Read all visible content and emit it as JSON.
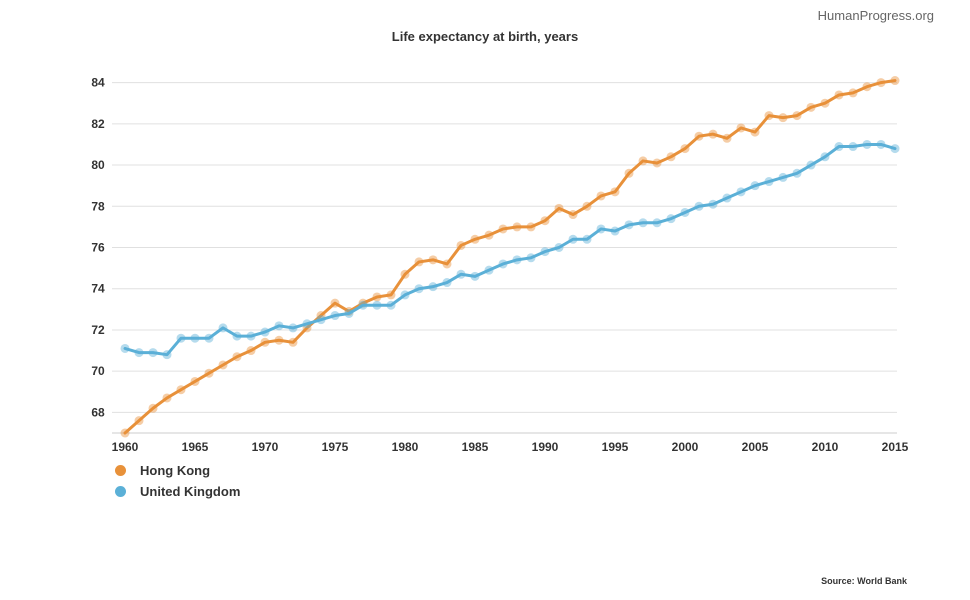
{
  "watermark": "HumanProgress.org",
  "source": "Source: World Bank",
  "chart_data": {
    "type": "line",
    "title": "Life expectancy at birth, years",
    "xlabel": "",
    "ylabel": "",
    "xlim": [
      1960,
      2015
    ],
    "ylim": [
      67,
      85
    ],
    "yticks": [
      68,
      70,
      72,
      74,
      76,
      78,
      80,
      82,
      84
    ],
    "xticks": [
      1960,
      1965,
      1970,
      1975,
      1980,
      1985,
      1990,
      1995,
      2000,
      2005,
      2010,
      2015
    ],
    "grid": true,
    "legend_position": "bottom-left",
    "x": [
      1960,
      1961,
      1962,
      1963,
      1964,
      1965,
      1966,
      1967,
      1968,
      1969,
      1970,
      1971,
      1972,
      1973,
      1974,
      1975,
      1976,
      1977,
      1978,
      1979,
      1980,
      1981,
      1982,
      1983,
      1984,
      1985,
      1986,
      1987,
      1988,
      1989,
      1990,
      1991,
      1992,
      1993,
      1994,
      1995,
      1996,
      1997,
      1998,
      1999,
      2000,
      2001,
      2002,
      2003,
      2004,
      2005,
      2006,
      2007,
      2008,
      2009,
      2010,
      2011,
      2012,
      2013,
      2014,
      2015
    ],
    "series": [
      {
        "name": "Hong Kong",
        "color": "#e8913a",
        "values": [
          67.0,
          67.6,
          68.2,
          68.7,
          69.1,
          69.5,
          69.9,
          70.3,
          70.7,
          71.0,
          71.4,
          71.5,
          71.4,
          72.1,
          72.7,
          73.3,
          72.9,
          73.3,
          73.6,
          73.7,
          74.7,
          75.3,
          75.4,
          75.2,
          76.1,
          76.4,
          76.6,
          76.9,
          77.0,
          77.0,
          77.3,
          77.9,
          77.6,
          78.0,
          78.5,
          78.7,
          79.6,
          80.2,
          80.1,
          80.4,
          80.8,
          81.4,
          81.5,
          81.3,
          81.8,
          81.6,
          82.4,
          82.3,
          82.4,
          82.8,
          83.0,
          83.4,
          83.5,
          83.8,
          84.0,
          84.1
        ]
      },
      {
        "name": "United Kingdom",
        "color": "#5bb0d7",
        "values": [
          71.1,
          70.9,
          70.9,
          70.8,
          71.6,
          71.6,
          71.6,
          72.1,
          71.7,
          71.7,
          71.9,
          72.2,
          72.1,
          72.3,
          72.5,
          72.7,
          72.8,
          73.2,
          73.2,
          73.2,
          73.7,
          74.0,
          74.1,
          74.3,
          74.7,
          74.6,
          74.9,
          75.2,
          75.4,
          75.5,
          75.8,
          76.0,
          76.4,
          76.4,
          76.9,
          76.8,
          77.1,
          77.2,
          77.2,
          77.4,
          77.7,
          78.0,
          78.1,
          78.4,
          78.7,
          79.0,
          79.2,
          79.4,
          79.6,
          80.0,
          80.4,
          80.9,
          80.9,
          81.0,
          81.0,
          80.8
        ]
      }
    ]
  }
}
